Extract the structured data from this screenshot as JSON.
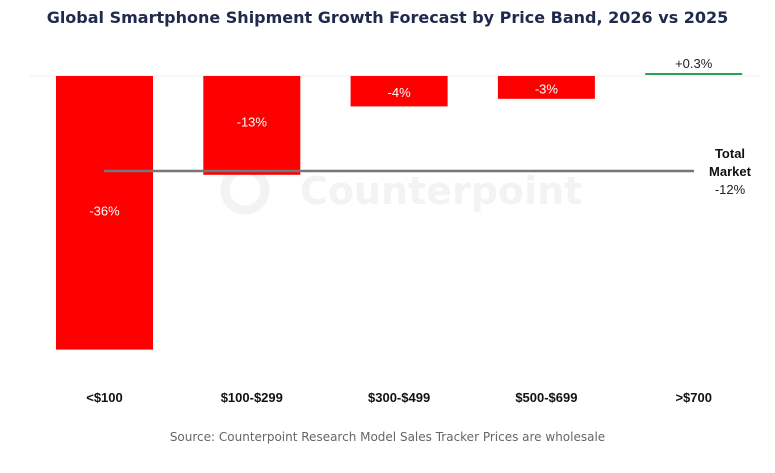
{
  "chart_data": {
    "type": "bar",
    "title": "Global Smartphone Shipment Growth Forecast by Price Band, 2026 vs 2025",
    "categories": [
      "<$100",
      "$100-$299",
      "$300-$499",
      "$500-$699",
      ">$700"
    ],
    "values": [
      -36,
      -13,
      -4,
      -3,
      0.3
    ],
    "data_labels": [
      "-36%",
      "-13%",
      "-4%",
      "-3%",
      "+0.3%"
    ],
    "ylim": [
      -36,
      0.3
    ],
    "grid": false,
    "reference_line": {
      "label_line1": "Total",
      "label_line2": "Market",
      "value": -12,
      "value_label": "-12%"
    },
    "colors": {
      "negative": "#ff0000",
      "positive": "#2ea05a",
      "reference": "#777777"
    },
    "watermark": "Counterpoint"
  },
  "source": "Source: Counterpoint Research Model Sales Tracker Prices are wholesale"
}
